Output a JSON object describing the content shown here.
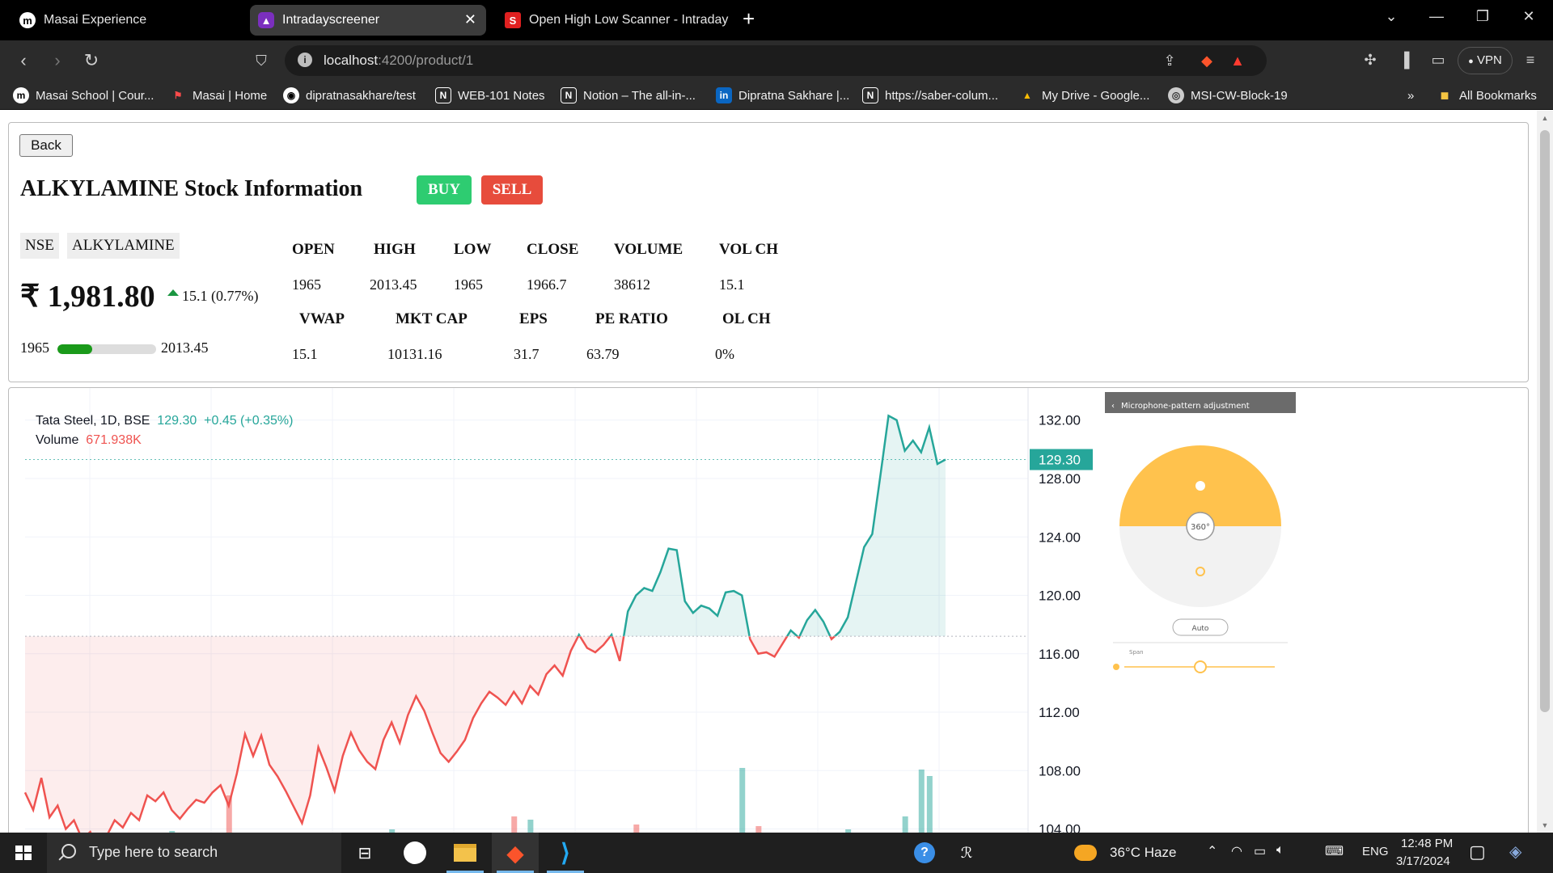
{
  "browser": {
    "tabs": [
      {
        "label": "Masai Experience",
        "icon": "masai-logo-icon",
        "active": false
      },
      {
        "label": "Intradayscreener",
        "icon": "intradayscreener-icon",
        "active": true
      },
      {
        "label": "Open High Low Scanner - Intraday s",
        "icon": "s-logo-icon",
        "active": false
      }
    ],
    "new_tab_label": "+",
    "url": {
      "host": "localhost",
      "path": ":4200/product/1"
    },
    "vpn_label": "VPN",
    "bookmarks": [
      {
        "label": "Masai School | Cour...",
        "icon": "masai-logo-icon"
      },
      {
        "label": "Masai | Home",
        "icon": "masai-icon"
      },
      {
        "label": "dipratnasakhare/test",
        "icon": "github-icon"
      },
      {
        "label": "WEB-101 Notes",
        "icon": "notion-icon"
      },
      {
        "label": "Notion – The all-in-...",
        "icon": "notion-icon"
      },
      {
        "label": "Dipratna Sakhare |...",
        "icon": "linkedin-icon"
      },
      {
        "label": "https://saber-colum...",
        "icon": "notion-icon"
      },
      {
        "label": "My Drive - Google...",
        "icon": "google-drive-icon"
      },
      {
        "label": "MSI-CW-Block-19",
        "icon": "globe-icon"
      }
    ],
    "bookmarks_more": "»",
    "all_bookmarks_label": "All Bookmarks"
  },
  "stock": {
    "back_label": "Back",
    "title": "ALKYLAMINE Stock Information",
    "buy_label": "BUY",
    "sell_label": "SELL",
    "exchange": "NSE",
    "symbol": "ALKYLAMINE",
    "price": "₹ 1,981.80",
    "change": "15.1 (0.77%)",
    "range_low": "1965",
    "range_high": "2013.45",
    "range_fill_fraction": 0.35,
    "colors": {
      "buy": "#2ecc71",
      "sell": "#e74c3c",
      "up": "#1a9641"
    },
    "stats_row1": [
      {
        "label": "OPEN",
        "value": "1965"
      },
      {
        "label": "HIGH",
        "value": "2013.45"
      },
      {
        "label": "LOW",
        "value": "1965"
      },
      {
        "label": "CLOSE",
        "value": "1966.7"
      },
      {
        "label": "VOLUME",
        "value": "38612"
      },
      {
        "label": "VOL CH",
        "value": "15.1"
      }
    ],
    "stats_row2": [
      {
        "label": "VWAP",
        "value": "15.1"
      },
      {
        "label": "MKT CAP",
        "value": "10131.16"
      },
      {
        "label": "EPS",
        "value": "31.7"
      },
      {
        "label": "PE RATIO",
        "value": "63.79"
      },
      {
        "label": "OL CH",
        "value": "0%"
      }
    ]
  },
  "chart_data": {
    "type": "area",
    "legend_symbol": "Tata Steel, 1D, BSE",
    "legend_price": "129.30",
    "legend_change": "+0.45 (+0.35%)",
    "legend_volume_label": "Volume",
    "legend_volume_value": "671.938K",
    "last_price_label": "129.30",
    "y_ticks": [
      "132.00",
      "128.00",
      "124.00",
      "120.00",
      "116.00",
      "112.00",
      "108.00",
      "104.00"
    ],
    "ylim": [
      103.2,
      134.2
    ],
    "baseline": 117.2,
    "last_price": 129.3,
    "colors": {
      "up": "#26a69a",
      "down": "#ef5350"
    },
    "values": [
      106.5,
      105.3,
      107.5,
      104.8,
      105.6,
      104.0,
      104.6,
      103.3,
      103.8,
      102.6,
      103.5,
      104.6,
      104.1,
      105.1,
      104.6,
      106.3,
      105.9,
      106.5,
      105.3,
      104.7,
      105.4,
      106.0,
      105.8,
      106.5,
      107.0,
      105.6,
      107.8,
      110.5,
      109.0,
      110.4,
      108.4,
      107.6,
      106.6,
      105.5,
      104.4,
      106.3,
      109.6,
      108.2,
      106.6,
      109.0,
      110.6,
      109.4,
      108.6,
      108.1,
      110.1,
      111.3,
      109.9,
      111.8,
      113.1,
      112.1,
      110.6,
      109.2,
      108.6,
      109.3,
      110.1,
      111.6,
      112.6,
      113.4,
      113.0,
      112.5,
      113.4,
      112.6,
      113.8,
      113.2,
      114.6,
      115.2,
      114.5,
      116.2,
      117.3,
      116.4,
      116.1,
      116.6,
      117.3,
      115.5,
      118.9,
      120.0,
      120.5,
      120.3,
      121.6,
      123.2,
      123.1,
      119.6,
      118.8,
      119.3,
      119.1,
      118.6,
      120.2,
      120.3,
      120.0,
      117.0,
      116.0,
      116.1,
      115.8,
      116.7,
      117.6,
      117.1,
      118.3,
      119.0,
      118.2,
      117.0,
      117.5,
      118.5,
      120.9,
      123.3,
      124.2,
      128.2,
      132.3,
      132.0,
      129.9,
      130.6,
      129.8,
      131.5,
      129.0,
      129.3
    ],
    "volume": [
      {
        "i": 0,
        "h": 3,
        "c": "red"
      },
      {
        "i": 5,
        "h": 2,
        "c": "green"
      },
      {
        "i": 18,
        "h": 12,
        "c": "green"
      },
      {
        "i": 25,
        "h": 56,
        "c": "red"
      },
      {
        "i": 45,
        "h": 14,
        "c": "green"
      },
      {
        "i": 60,
        "h": 30,
        "c": "red"
      },
      {
        "i": 62,
        "h": 26,
        "c": "green"
      },
      {
        "i": 75,
        "h": 20,
        "c": "red"
      },
      {
        "i": 80,
        "h": 8,
        "c": "green"
      },
      {
        "i": 88,
        "h": 90,
        "c": "green"
      },
      {
        "i": 90,
        "h": 18,
        "c": "red"
      },
      {
        "i": 101,
        "h": 14,
        "c": "green"
      },
      {
        "i": 108,
        "h": 30,
        "c": "green"
      },
      {
        "i": 110,
        "h": 88,
        "c": "green"
      },
      {
        "i": 111,
        "h": 80,
        "c": "green"
      }
    ]
  },
  "mic_panel": {
    "title": "Microphone-pattern adjustment",
    "center_label": "360°",
    "auto_label": "Auto",
    "span_label": "Span",
    "colors": {
      "accent": "#ffc24d",
      "header": "#6b6b6b"
    }
  },
  "taskbar": {
    "search_placeholder": "Type here to search",
    "weather": "36°C  Haze",
    "language": "ENG",
    "time": "12:48 PM",
    "date": "3/17/2024"
  }
}
